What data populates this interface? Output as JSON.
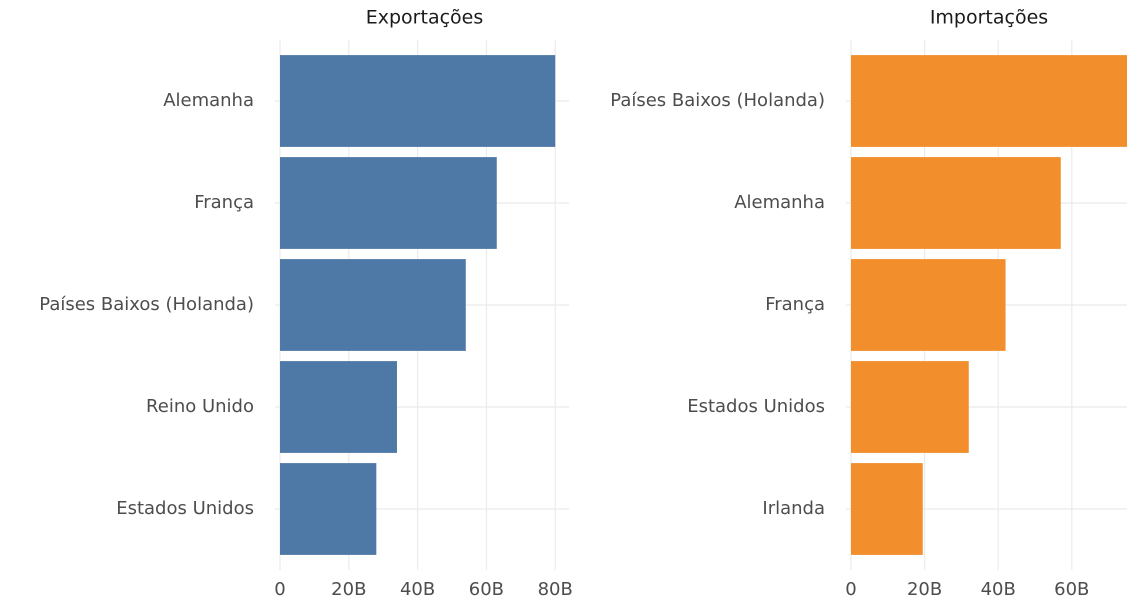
{
  "chart_data": [
    {
      "type": "bar",
      "orientation": "horizontal",
      "title": "Exportações",
      "categories": [
        "Alemanha",
        "França",
        "Países Baixos (Holanda)",
        "Reino Unido",
        "Estados Unidos"
      ],
      "values": [
        80,
        63,
        54,
        34,
        28
      ],
      "color": "#4e79a7",
      "xlim": [
        0,
        84
      ],
      "xticks": [
        0,
        {
          "value": 20,
          "label": "20B"
        },
        {
          "value": 40,
          "label": "40B"
        },
        {
          "value": 60,
          "label": "60B"
        },
        {
          "value": 80,
          "label": "80B"
        }
      ],
      "grid": true
    },
    {
      "type": "bar",
      "orientation": "horizontal",
      "title": "Importações",
      "categories": [
        "Países Baixos (Holanda)",
        "Alemanha",
        "França",
        "Estados Unidos",
        "Irlanda"
      ],
      "values": [
        75,
        57,
        42,
        32,
        19.5
      ],
      "color": "#f28e2b",
      "xlim": [
        0,
        75
      ],
      "xticks": [
        0,
        {
          "value": 20,
          "label": "20B"
        },
        {
          "value": 40,
          "label": "40B"
        },
        {
          "value": 60,
          "label": "60B"
        }
      ],
      "grid": true
    }
  ]
}
